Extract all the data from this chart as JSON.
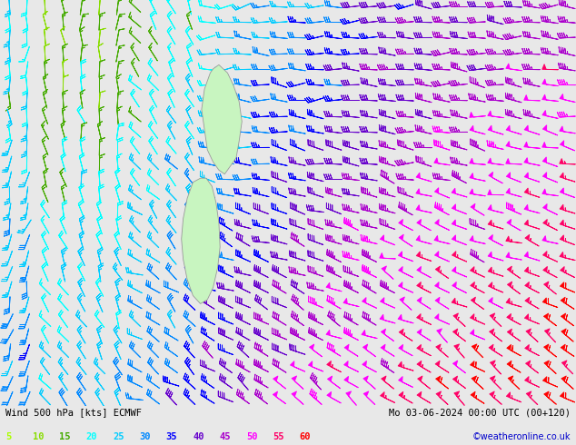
{
  "title_left": "Wind 500 hPa [kts] ECMWF",
  "title_right": "Mo 03-06-2024 00:00 UTC (00+120)",
  "credit": "©weatheronline.co.uk",
  "legend_values": [
    5,
    10,
    15,
    20,
    25,
    30,
    35,
    40,
    45,
    50,
    55,
    60
  ],
  "legend_colors": [
    "#aaff00",
    "#88dd00",
    "#44aa00",
    "#00ffff",
    "#00ccff",
    "#0088ff",
    "#0000ff",
    "#6600cc",
    "#aa00cc",
    "#ff00ff",
    "#ff0066",
    "#ff0000"
  ],
  "bg_color": "#e8e8e8",
  "nx": 32,
  "ny": 26,
  "seed": 7
}
